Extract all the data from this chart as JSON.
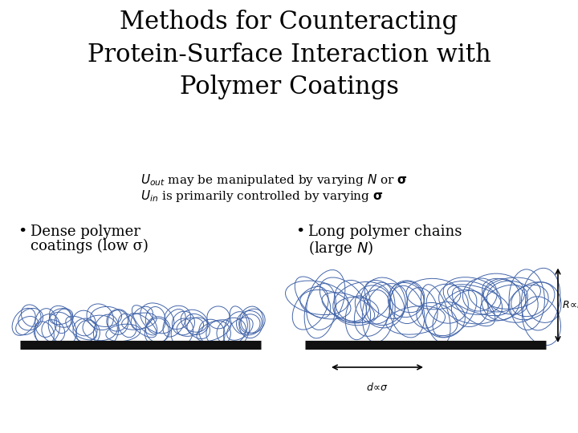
{
  "title_line1": "Methods for Counteracting",
  "title_line2": "Protein-Surface Interaction with",
  "title_line3": "Polymer Coatings",
  "subtitle_line1": "$\\mathit{U}_{out}$ may be manipulated by varying $\\mathit{N}$ or $\\mathbf{\\sigma}$",
  "subtitle_line2": "$\\mathit{U}_{in}$ is primarily controlled by varying $\\mathbf{\\sigma}$",
  "bullet1_line1": "Dense polymer",
  "bullet1_line2": "coatings (low σ)",
  "bullet2_line1": "Long polymer chains",
  "bullet2_line2": "(large $\\mathit{N}$)",
  "polymer_color": "#4466aa",
  "surface_color": "#111111",
  "background_color": "#ffffff",
  "title_fontsize": 22,
  "subtitle_fontsize": 11,
  "bullet_fontsize": 13,
  "annot_fontsize": 9
}
